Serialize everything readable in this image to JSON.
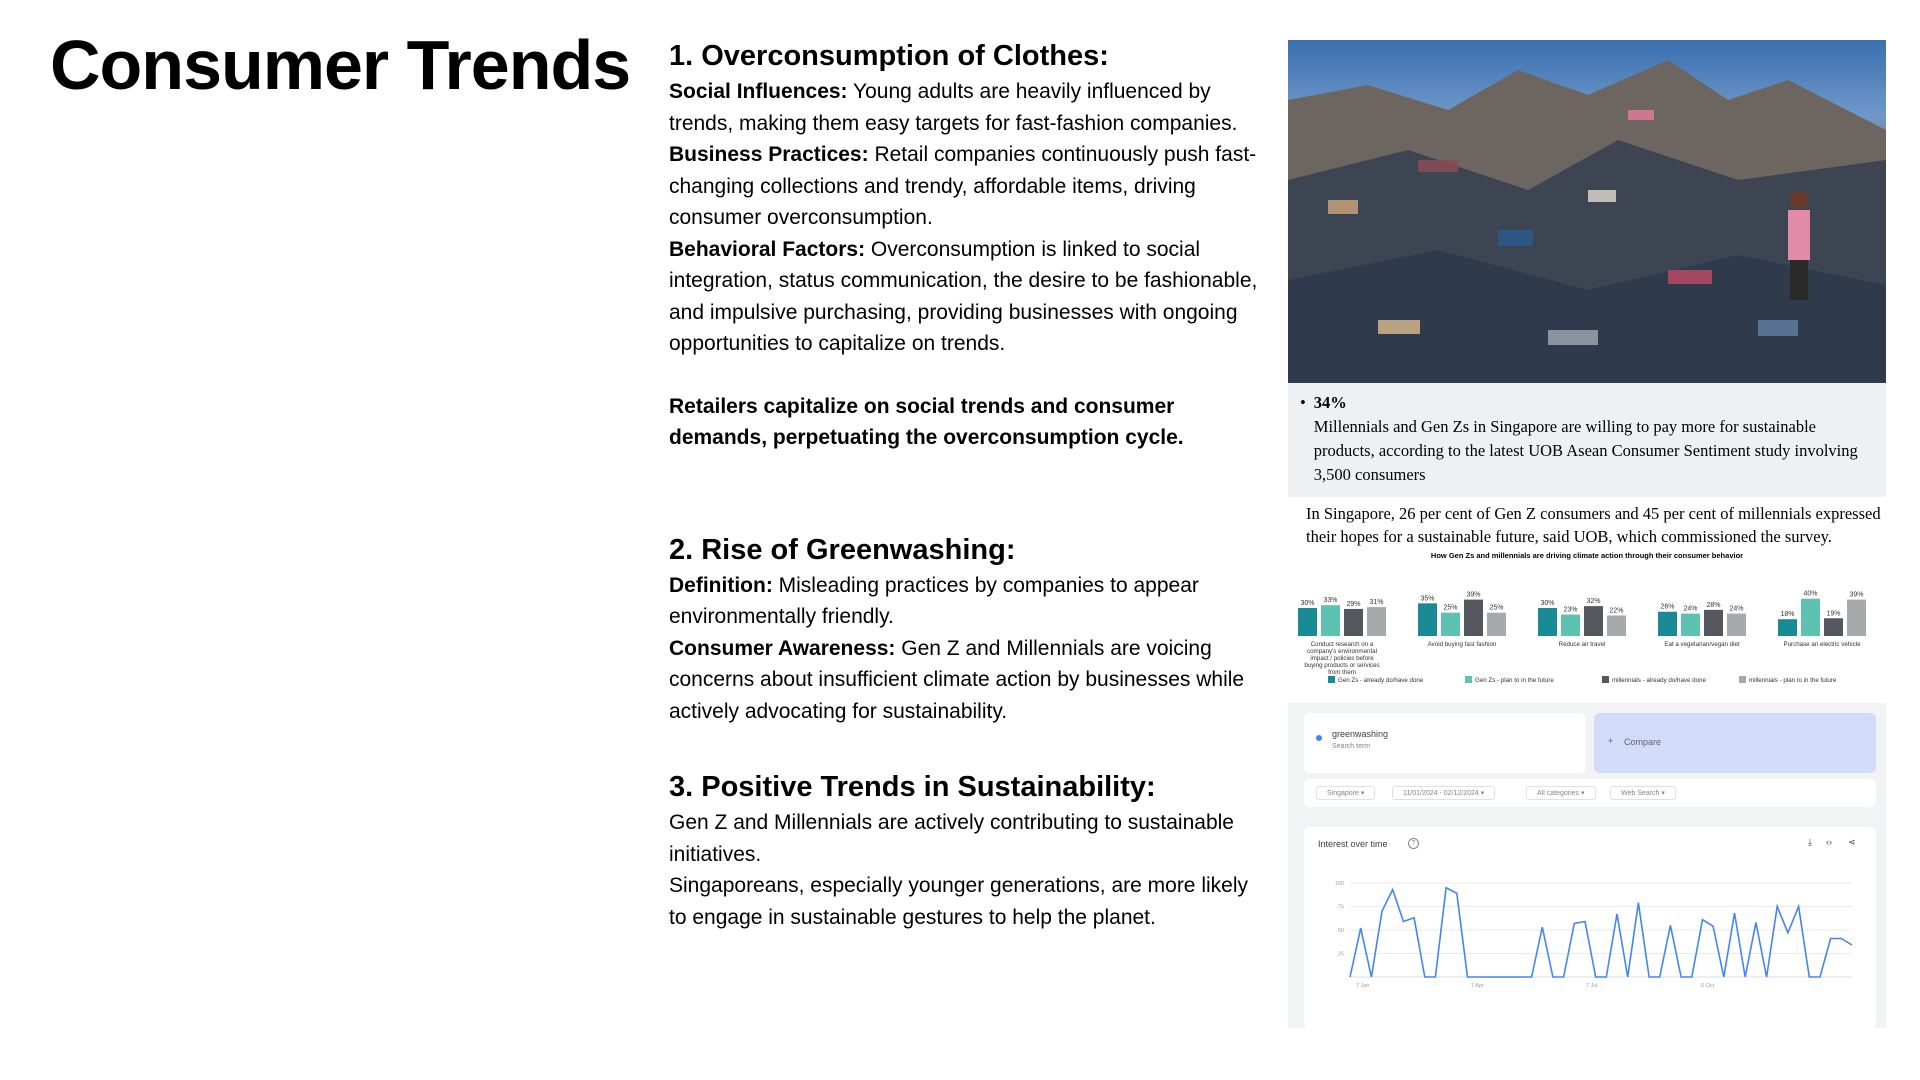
{
  "page": {
    "title": "Consumer Trends"
  },
  "section1": {
    "heading": "1. Overconsumption of Clothes:",
    "items": [
      {
        "label": "Social Influences:",
        "text": " Young adults are heavily influenced by trends, making them easy targets for fast-fashion companies."
      },
      {
        "label": "Business Practices:",
        "text": " Retail companies continuously push fast-changing collections and trendy, affordable items, driving consumer overconsumption."
      },
      {
        "label": "Behavioral Factors:",
        "text": " Overconsumption is linked to social integration, status communication, the desire to be fashionable, and impulsive purchasing, providing businesses with ongoing opportunities to capitalize on trends."
      }
    ],
    "callout": "Retailers capitalize on social trends and consumer demands, perpetuating the overconsumption cycle."
  },
  "section2": {
    "heading": "2. Rise of Greenwashing:",
    "items": [
      {
        "label": "Definition:",
        "text": " Misleading practices by companies to appear environmentally friendly."
      },
      {
        "label": "Consumer Awareness:",
        "text": " Gen Z and Millennials are voicing concerns about insufficient climate action by businesses while actively advocating for sustainability."
      }
    ]
  },
  "section3": {
    "heading": "3. Positive Trends in Sustainability:",
    "lines": [
      "Gen Z and Millennials are actively contributing to sustainable initiatives.",
      "Singaporeans, especially younger generations, are more likely to engage in sustainable gestures to help the planet."
    ]
  },
  "article": {
    "bullet_pct": "34%",
    "bullet_text": "Millennials and Gen Zs in Singapore are willing to pay more for sustainable products, according to the latest UOB Asean Consumer Sentiment study involving 3,500 consumers",
    "paragraph": "In Singapore, 26 per cent of Gen Z consumers and 45 per cent of millennials expressed their hopes for a sustainable future, said UOB, which commissioned the survey."
  },
  "chart_data": [
    {
      "type": "bar",
      "title": "How Gen Zs and millennials are driving climate action through their consumer behavior",
      "categories": [
        "Conduct research on a company's environmental impact / policies before buying products or services from them",
        "Avoid buying fast fashion",
        "Reduce air travel",
        "Eat a vegetarian/vegan diet",
        "Purchase an electric vehicle"
      ],
      "series": [
        {
          "name": "Gen Zs - already do/have done",
          "values": [
            30,
            35,
            30,
            26,
            18
          ],
          "color": "#1a8a96"
        },
        {
          "name": "Gen Zs - plan to in the future",
          "values": [
            33,
            25,
            23,
            24,
            40
          ],
          "color": "#5ec2b2"
        },
        {
          "name": "millennials - already do/have done",
          "values": [
            29,
            39,
            32,
            28,
            19
          ],
          "color": "#54575d"
        },
        {
          "name": "millennials - plan to in the future",
          "values": [
            31,
            25,
            22,
            24,
            39
          ],
          "color": "#a7a9ac"
        }
      ],
      "ylim": [
        0,
        45
      ]
    },
    {
      "type": "line",
      "title": "Interest over time",
      "x_ticks": [
        "7 Jan",
        "7 Apr",
        "7 Jul",
        "6 Oct"
      ],
      "y_ticks": [
        "100",
        "75",
        "50",
        "25"
      ],
      "ylim": [
        0,
        100
      ],
      "series": [
        {
          "name": "greenwashing",
          "color": "#4285f4",
          "values": [
            0,
            52,
            0,
            70,
            93,
            59,
            63,
            0,
            0,
            95,
            89,
            0,
            0,
            0,
            0,
            0,
            0,
            0,
            53,
            0,
            0,
            57,
            59,
            0,
            0,
            67,
            0,
            79,
            0,
            0,
            55,
            0,
            0,
            61,
            54,
            0,
            68,
            0,
            58,
            0,
            75,
            47,
            75,
            0,
            0,
            41,
            41,
            34
          ]
        }
      ]
    }
  ],
  "trends": {
    "term": "greenwashing",
    "term_sub": "Search term",
    "compare": "Compare",
    "filters": [
      "Singapore",
      "11/01/2024 - 02/12/2024",
      "All categories",
      "Web Search"
    ],
    "help_icon": "help-icon",
    "actions": [
      "download-icon",
      "embed-icon",
      "share-icon"
    ]
  }
}
